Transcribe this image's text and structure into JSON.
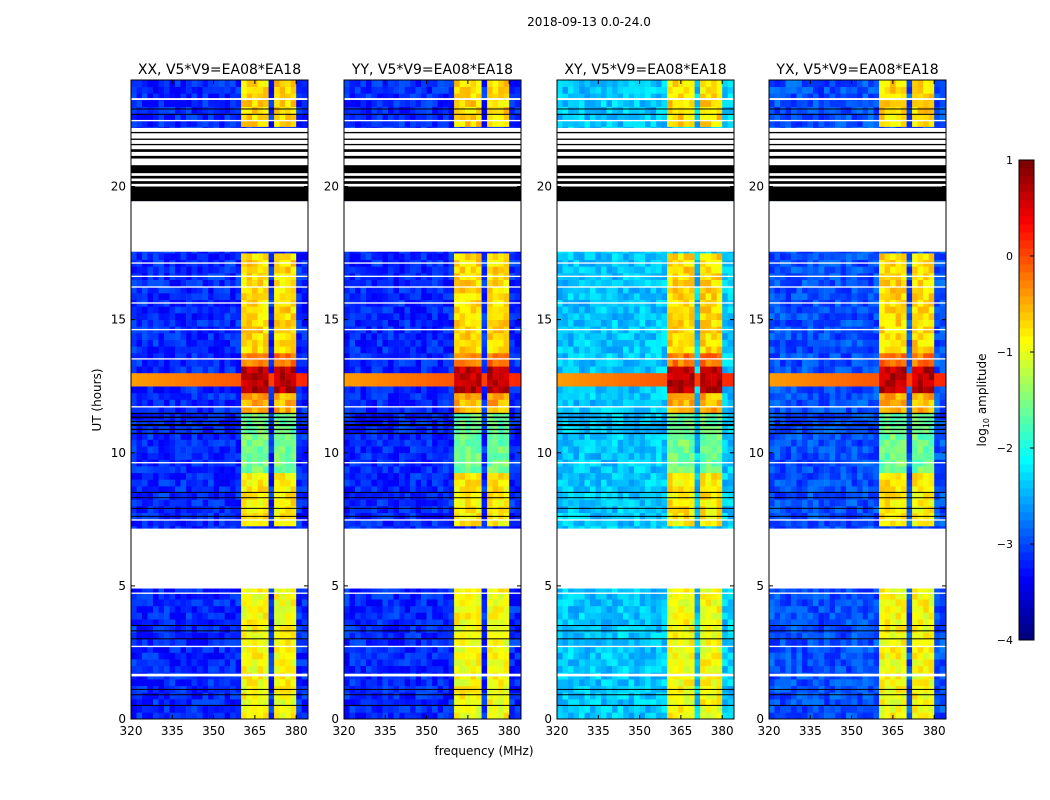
{
  "chart_data": {
    "type": "heatmap",
    "title": "2018-09-13 0.0-24.0",
    "xlabel": "frequency (MHz)",
    "ylabel": "UT (hours)",
    "xlim": [
      320,
      384.3
    ],
    "ylim": [
      0,
      24
    ],
    "xticks": [
      "320",
      "335",
      "350",
      "365",
      "380"
    ],
    "xtick_values": [
      320,
      335,
      350,
      365,
      380
    ],
    "yticks": [
      "0",
      "5",
      "10",
      "15",
      "20"
    ],
    "ytick_values": [
      0,
      5,
      10,
      15,
      20
    ],
    "colormap": "jet",
    "colorbar": {
      "label_prefix": "log",
      "label_sub": "10",
      "label_suffix": " amplitude",
      "range": [
        -4,
        1
      ],
      "ticks": [
        "1",
        "0",
        "−1",
        "−2",
        "−3",
        "−4"
      ],
      "tick_values": [
        1,
        0,
        -1,
        -2,
        -3,
        -4
      ]
    },
    "panels": [
      {
        "title": "XX, V5*V9=EA08*EA18",
        "background": -3.2
      },
      {
        "title": "YY, V5*V9=EA08*EA18",
        "background": -3.2
      },
      {
        "title": "XY, V5*V9=EA08*EA18",
        "background": -2.4
      },
      {
        "title": "YX, V5*V9=EA08*EA18",
        "background": -3.0
      }
    ],
    "rfi_channels_mhz": [
      [
        360.8,
        365.2
      ],
      [
        366.2,
        370.8
      ],
      [
        371.8,
        375.6
      ],
      [
        376.6,
        380.4
      ]
    ],
    "rfi_levels_by_time": [
      [
        0,
        4.9,
        -0.9
      ],
      [
        7.2,
        9.3,
        -0.8
      ],
      [
        9.3,
        11.5,
        -1.6
      ],
      [
        11.5,
        12.3,
        -0.5
      ],
      [
        12.3,
        13.2,
        0.7
      ],
      [
        13.2,
        13.8,
        -0.2
      ],
      [
        13.8,
        17.6,
        -0.7
      ],
      [
        22.2,
        24,
        -0.7
      ]
    ],
    "broadband_events": [
      [
        12.4,
        13.0,
        -0.4
      ]
    ],
    "flagged_white": [
      [
        17.55,
        19.45
      ],
      [
        4.9,
        7.15
      ],
      [
        19.45,
        22.2
      ],
      [
        23.25,
        23.32
      ],
      [
        22.45,
        22.5
      ],
      [
        17.1,
        17.15
      ],
      [
        16.6,
        16.65
      ],
      [
        16.2,
        16.25
      ],
      [
        15.6,
        15.65
      ],
      [
        14.6,
        14.65
      ],
      [
        13.5,
        13.55
      ],
      [
        11.7,
        11.75
      ],
      [
        9.6,
        9.65
      ],
      [
        7.45,
        7.5
      ],
      [
        4.7,
        4.75
      ],
      [
        2.7,
        2.75
      ],
      [
        1.6,
        1.7
      ]
    ],
    "flagged_black": [
      [
        19.45,
        20.0
      ],
      [
        20.1,
        20.2
      ],
      [
        20.3,
        20.4
      ],
      [
        20.5,
        20.8
      ],
      [
        21.05,
        21.15
      ],
      [
        21.3,
        21.4
      ],
      [
        21.55,
        21.6
      ],
      [
        21.75,
        21.8
      ],
      [
        22.0,
        22.05
      ],
      [
        22.7,
        22.73
      ],
      [
        22.9,
        22.93
      ],
      [
        10.7,
        10.75
      ],
      [
        10.85,
        10.9
      ],
      [
        11.0,
        11.08
      ],
      [
        11.15,
        11.2
      ],
      [
        11.3,
        11.36
      ],
      [
        11.45,
        11.5
      ],
      [
        7.6,
        7.63
      ],
      [
        7.9,
        7.93
      ],
      [
        8.3,
        8.33
      ],
      [
        8.5,
        8.53
      ],
      [
        3.0,
        3.03
      ],
      [
        3.3,
        3.33
      ],
      [
        3.5,
        3.53
      ],
      [
        0.5,
        0.53
      ],
      [
        0.9,
        0.93
      ],
      [
        1.1,
        1.13
      ]
    ]
  }
}
